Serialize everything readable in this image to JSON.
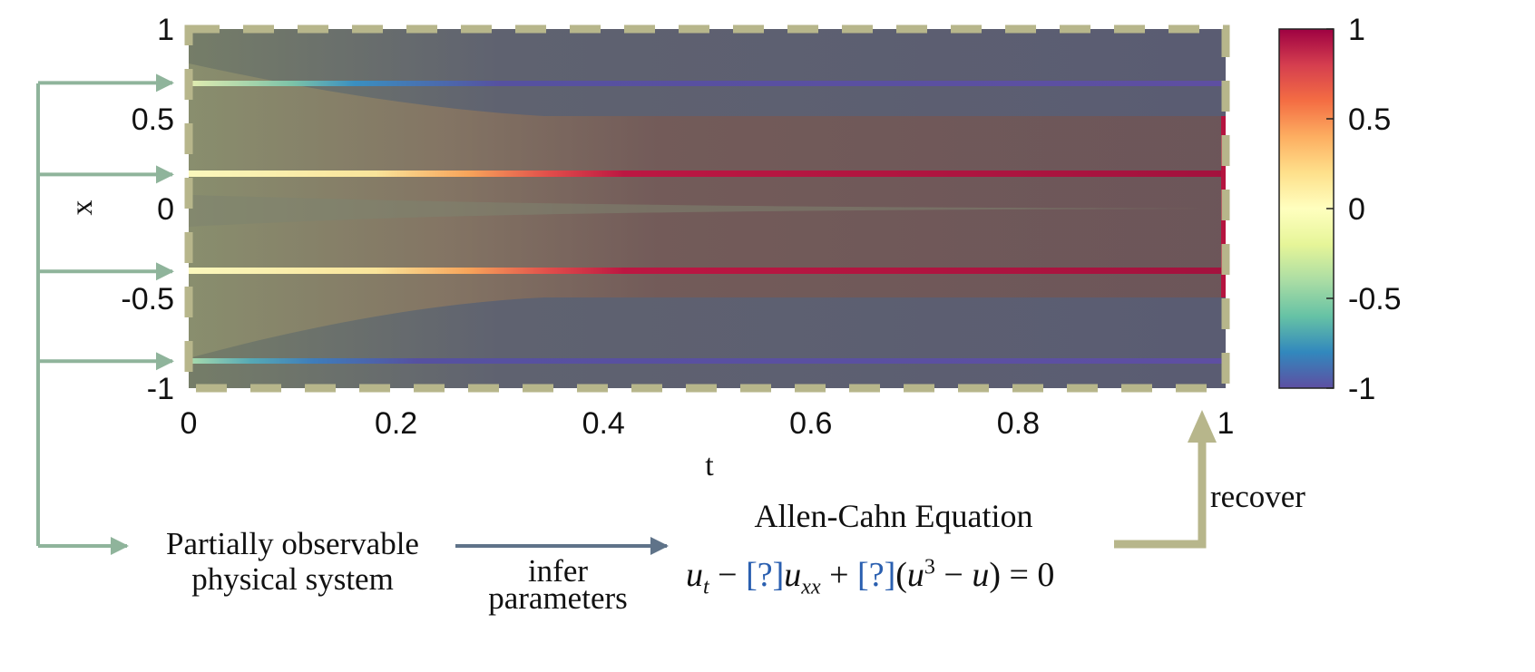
{
  "chart_data": {
    "type": "heatmap",
    "xlabel": "t",
    "ylabel": "x",
    "xlim": [
      0,
      1
    ],
    "ylim": [
      -1,
      1
    ],
    "x_ticks": [
      "0",
      "0.2",
      "0.4",
      "0.6",
      "0.8",
      "1"
    ],
    "y_ticks": [
      "1",
      "0.5",
      "0",
      "-0.5",
      "-1"
    ],
    "colorbar": {
      "range": [
        -1,
        1
      ],
      "ticks": [
        "1",
        "0.5",
        "0",
        "-0.5",
        "-1"
      ]
    },
    "observed_x": [
      0.7,
      0.19,
      -0.35,
      -0.85
    ],
    "colors": {
      "arrow": "#8fb49b",
      "frame": "#b7b68b",
      "infer_arrow": "#5f7389",
      "param": "#2a5fb0"
    }
  },
  "labels": {
    "system_line1": "Partially observable",
    "system_line2": "physical system",
    "infer_line1": "infer",
    "infer_line2": "parameters",
    "equation_title": "Allen-Cahn Equation",
    "recover": "recover",
    "param_placeholder": "[?]"
  }
}
